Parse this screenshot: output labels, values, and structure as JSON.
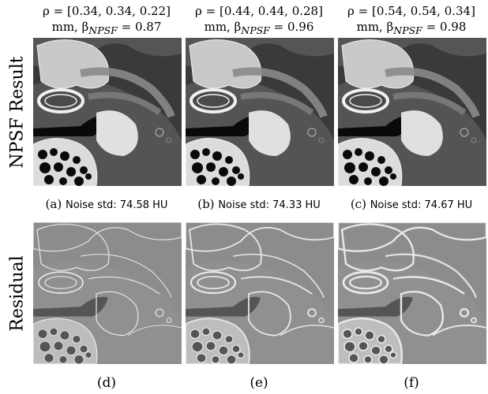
{
  "columns": [
    {
      "head_line1": "ρ = [0.34, 0.34, 0.22]",
      "head_line2": "mm, β",
      "beta_sub": "NPSF",
      "beta_val": " = 0.87",
      "caption_letter": "(a)",
      "caption_text": "Noise std: 74.58 HU",
      "residual_letter": "(d)"
    },
    {
      "head_line1": "ρ = [0.44, 0.44, 0.28]",
      "head_line2": "mm, β",
      "beta_sub": "NPSF",
      "beta_val": " = 0.96",
      "caption_letter": "(b)",
      "caption_text": "Noise std: 74.33 HU",
      "residual_letter": "(e)"
    },
    {
      "head_line1": "ρ = [0.54, 0.54, 0.34]",
      "head_line2": "mm, β",
      "beta_sub": "NPSF",
      "beta_val": " = 0.98",
      "caption_letter": "(c)",
      "caption_text": "Noise std: 74.67 HU",
      "residual_letter": "(f)"
    }
  ],
  "row_labels": {
    "top": "NPSF Result",
    "bottom": "Residual"
  }
}
